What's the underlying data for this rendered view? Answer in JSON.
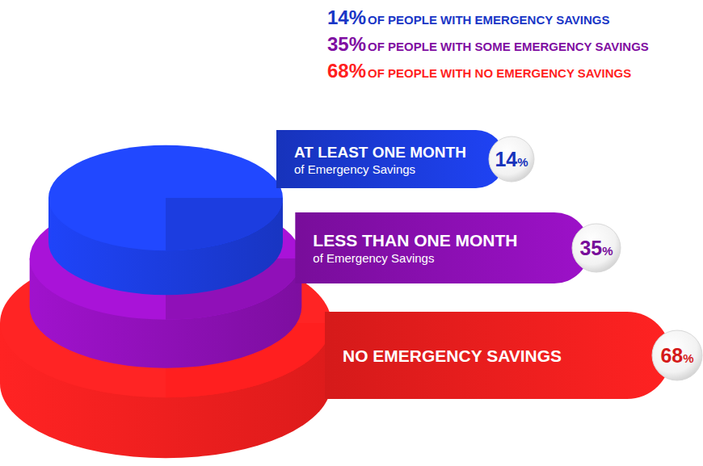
{
  "chart_data": {
    "type": "pyramid",
    "annotations": [
      "14% OF PEOPLE WITH EMERGENCY SAVINGS",
      "35% OF PEOPLE WITH SOME EMERGENCY SAVINGS",
      "68% OF PEOPLE WITH NO EMERGENCY SAVINGS"
    ],
    "categories": [
      "AT LEAST ONE MONTH",
      "LESS THAN ONE MONTH",
      "NO EMERGENCY SAVINGS"
    ],
    "category_subtitles": [
      "of Emergency Savings",
      "of Emergency Savings",
      null
    ],
    "values": [
      14,
      35,
      68
    ],
    "value_labels": [
      "14%",
      "35%",
      "68%"
    ],
    "colors": [
      "#1c3de0",
      "#9010b8",
      "#ff1f1f"
    ],
    "data_labels": true
  }
}
